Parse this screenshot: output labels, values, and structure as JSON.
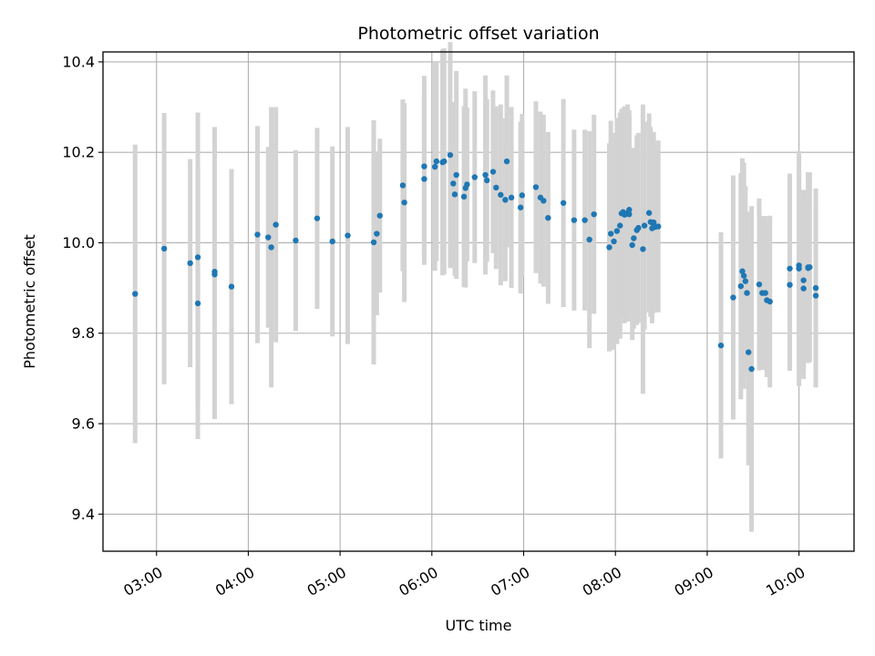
{
  "chart_data": {
    "type": "scatter",
    "title": "Photometric offset variation",
    "xlabel": "UTC time",
    "ylabel": "Photometric offset",
    "xlim": [
      "02:25",
      "10:36"
    ],
    "ylim": [
      9.318,
      10.422
    ],
    "grid": true,
    "xticks": [
      "03:00",
      "04:00",
      "05:00",
      "06:00",
      "07:00",
      "08:00",
      "09:00",
      "10:00"
    ],
    "yticks": [
      "9.4",
      "9.6",
      "9.8",
      "10.0",
      "10.2",
      "10.4"
    ],
    "ytick_values": [
      9.4,
      9.6,
      9.8,
      10.0,
      10.2,
      10.4
    ],
    "colors": {
      "point": "#1f77b4",
      "errorbar": "#d3d3d3",
      "grid": "#b0b0b0",
      "axes": "#000000"
    },
    "series": [
      {
        "x": [
          "02:46",
          "03:05",
          "03:22",
          "03:27",
          "03:27",
          "03:38",
          "03:38",
          "03:49",
          "04:06",
          "04:13",
          "04:15",
          "04:18",
          "04:31",
          "04:45",
          "04:55",
          "05:05",
          "05:22",
          "05:24",
          "05:26",
          "05:41",
          "05:42",
          "05:55",
          "05:55",
          "06:02",
          "06:03",
          "06:07",
          "06:08",
          "06:12",
          "06:14",
          "06:15",
          "06:16",
          "06:21",
          "06:22",
          "06:23",
          "06:28",
          "06:35",
          "06:36",
          "06:40",
          "06:42",
          "06:45",
          "06:48",
          "06:49",
          "06:52",
          "06:58",
          "06:59",
          "07:08",
          "07:11",
          "07:13",
          "07:16",
          "07:26",
          "07:33",
          "07:40",
          "07:43",
          "07:46",
          "07:56",
          "07:57",
          "07:59",
          "08:01",
          "08:03",
          "08:04",
          "08:05",
          "08:06",
          "08:07",
          "08:08",
          "08:09",
          "08:09",
          "08:11",
          "08:12",
          "08:14",
          "08:15",
          "08:18",
          "08:19",
          "08:22",
          "08:23",
          "08:24",
          "08:25",
          "08:25",
          "08:26",
          "08:28",
          "09:09",
          "09:17",
          "09:22",
          "09:23",
          "09:24",
          "09:25",
          "09:26",
          "09:27",
          "09:29",
          "09:34",
          "09:36",
          "09:38",
          "09:39",
          "09:41",
          "09:54",
          "09:54",
          "10:00",
          "10:00",
          "10:03",
          "10:03",
          "10:06",
          "10:06",
          "10:07",
          "10:11",
          "10:11"
        ],
        "y": [
          9.887,
          9.987,
          9.955,
          9.866,
          9.968,
          9.936,
          9.93,
          9.903,
          10.018,
          10.012,
          9.99,
          10.04,
          10.005,
          10.054,
          10.003,
          10.016,
          10.001,
          10.02,
          10.06,
          10.127,
          10.089,
          10.169,
          10.141,
          10.168,
          10.18,
          10.178,
          10.18,
          10.194,
          10.131,
          10.107,
          10.15,
          10.102,
          10.121,
          10.129,
          10.145,
          10.15,
          10.138,
          10.157,
          10.122,
          10.106,
          10.095,
          10.18,
          10.1,
          10.078,
          10.105,
          10.123,
          10.1,
          10.093,
          10.055,
          10.088,
          10.05,
          10.05,
          10.007,
          10.063,
          9.99,
          10.02,
          10.003,
          10.026,
          10.038,
          10.065,
          10.068,
          10.062,
          10.064,
          10.066,
          10.063,
          10.073,
          9.995,
          10.01,
          10.028,
          10.033,
          9.986,
          10.038,
          10.066,
          10.046,
          10.032,
          10.041,
          10.045,
          10.035,
          10.036,
          9.773,
          9.879,
          9.904,
          9.937,
          9.927,
          9.915,
          9.889,
          9.758,
          9.721,
          9.908,
          9.889,
          9.889,
          9.873,
          9.87,
          9.943,
          9.907,
          9.95,
          9.943,
          9.917,
          9.899,
          9.946,
          9.944,
          9.946,
          9.883,
          9.9
        ],
        "yerr": [
          0.33,
          0.3,
          0.23,
          0.3,
          0.32,
          0.32,
          0.32,
          0.26,
          0.24,
          0.2,
          0.31,
          0.26,
          0.2,
          0.2,
          0.21,
          0.24,
          0.27,
          0.18,
          0.17,
          0.19,
          0.22,
          0.2,
          0.19,
          0.23,
          0.22,
          0.25,
          0.25,
          0.25,
          0.18,
          0.18,
          0.23,
          0.2,
          0.22,
          0.17,
          0.19,
          0.22,
          0.18,
          0.18,
          0.18,
          0.2,
          0.18,
          0.19,
          0.2,
          0.19,
          0.18,
          0.19,
          0.19,
          0.19,
          0.19,
          0.23,
          0.2,
          0.2,
          0.24,
          0.22,
          0.23,
          0.25,
          0.24,
          0.25,
          0.25,
          0.23,
          0.23,
          0.24,
          0.22,
          0.24,
          0.22,
          0.22,
          0.21,
          0.2,
          0.21,
          0.21,
          0.32,
          0.23,
          0.22,
          0.21,
          0.21,
          0.19,
          0.2,
          0.18,
          0.19,
          0.25,
          0.27,
          0.25,
          0.25,
          0.25,
          0.21,
          0.18,
          0.25,
          0.36,
          0.19,
          0.17,
          0.17,
          0.17,
          0.19,
          0.21,
          0.19,
          0.21,
          0.26,
          0.2,
          0.2,
          0.21,
          0.21,
          0.21,
          0.2,
          0.22
        ]
      }
    ]
  }
}
